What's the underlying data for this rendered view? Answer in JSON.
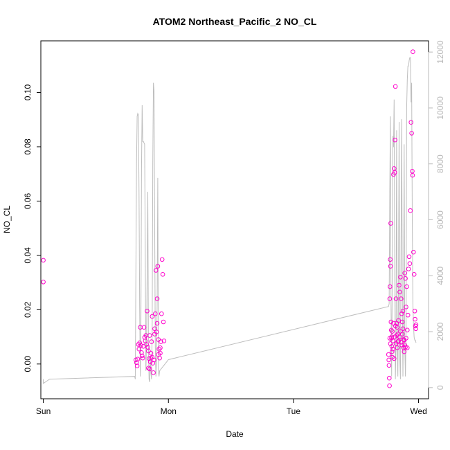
{
  "chart_data": {
    "type": "scatter",
    "title": "ATOM2 Northeast_Pacific_2 NO_CL",
    "xlabel": "Date",
    "ylabel": "NO_CL",
    "x_range_days": [
      -0.02,
      3.08
    ],
    "x_ticks": [
      {
        "label": "Sun",
        "day": 0
      },
      {
        "label": "Mon",
        "day": 1
      },
      {
        "label": "Tue",
        "day": 2
      },
      {
        "label": "Wed",
        "day": 3
      }
    ],
    "y_range": [
      -0.0128,
      0.119
    ],
    "y_ticks": [
      {
        "label": "0.00",
        "value": 0.0
      },
      {
        "label": "0.02",
        "value": 0.02
      },
      {
        "label": "0.04",
        "value": 0.04
      },
      {
        "label": "0.06",
        "value": 0.06
      },
      {
        "label": "0.08",
        "value": 0.08
      },
      {
        "label": "0.10",
        "value": 0.1
      }
    ],
    "y2_range": [
      -400,
      12400
    ],
    "y2_ticks": [
      {
        "label": "0",
        "value": 0
      },
      {
        "label": "2000",
        "value": 2000
      },
      {
        "label": "4000",
        "value": 4000
      },
      {
        "label": "6000",
        "value": 6000
      },
      {
        "label": "8000",
        "value": 8000
      },
      {
        "label": "10000",
        "value": 10000
      },
      {
        "label": "12000",
        "value": 12000
      }
    ],
    "grid": false,
    "colors": {
      "points": "#ff00cc",
      "altitude_line": "#bebebe",
      "right_axis": "#b8b8b8",
      "axis": "#000000"
    },
    "series": [
      {
        "kind": "points",
        "points": [
          [
            0.0,
            0.0382
          ],
          [
            0.0,
            0.0302
          ],
          [
            0.74,
            0.0015
          ],
          [
            0.745,
            0.0005
          ],
          [
            0.75,
            -0.0007
          ],
          [
            0.755,
            0.0018
          ],
          [
            0.76,
            0.0072
          ],
          [
            0.765,
            0.0055
          ],
          [
            0.77,
            0.0078
          ],
          [
            0.775,
            0.0135
          ],
          [
            0.78,
            0.0068
          ],
          [
            0.785,
            0.0042
          ],
          [
            0.79,
            0.003
          ],
          [
            0.795,
            0.0022
          ],
          [
            0.8,
            0.0065
          ],
          [
            0.805,
            0.0135
          ],
          [
            0.81,
            0.0098
          ],
          [
            0.815,
            0.0085
          ],
          [
            0.82,
            0.0105
          ],
          [
            0.825,
            0.0072
          ],
          [
            0.83,
            0.0195
          ],
          [
            0.835,
            0.0062
          ],
          [
            0.84,
            0.0048
          ],
          [
            0.845,
            0.002
          ],
          [
            0.85,
            -0.0018
          ],
          [
            0.855,
            0.0008
          ],
          [
            0.86,
            0.004
          ],
          [
            0.865,
            0.0082
          ],
          [
            0.87,
            0.0025
          ],
          [
            0.875,
            0.0003
          ],
          [
            0.88,
            -0.0032
          ],
          [
            0.885,
            0.0015
          ],
          [
            0.89,
            0.013
          ],
          [
            0.895,
            0.0185
          ],
          [
            0.9,
            0.0345
          ],
          [
            0.905,
            0.0118
          ],
          [
            0.91,
            0.024
          ],
          [
            0.915,
            0.036
          ],
          [
            0.92,
            0.009
          ],
          [
            0.925,
            0.0055
          ],
          [
            0.93,
            0.0022
          ],
          [
            0.935,
            0.006
          ],
          [
            0.94,
            0.0082
          ],
          [
            0.945,
            0.0185
          ],
          [
            0.95,
            0.0385
          ],
          [
            0.955,
            0.033
          ],
          [
            0.96,
            0.0155
          ],
          [
            0.965,
            0.0085
          ],
          [
            0.85,
            0.0105
          ],
          [
            0.87,
            0.0175
          ],
          [
            0.89,
            0.011
          ],
          [
            0.91,
            0.015
          ],
          [
            0.92,
            0.0035
          ],
          [
            0.935,
            0.004
          ],
          [
            0.86,
            0.0022
          ],
          [
            0.84,
            -0.0015
          ],
          [
            2.76,
            0.0035
          ],
          [
            2.762,
            0.0015
          ],
          [
            2.764,
            -0.0005
          ],
          [
            2.766,
            -0.0052
          ],
          [
            2.768,
            -0.008
          ],
          [
            2.77,
            0.024
          ],
          [
            2.772,
            0.0285
          ],
          [
            2.774,
            0.0385
          ],
          [
            2.776,
            0.036
          ],
          [
            2.778,
            0.0518
          ],
          [
            2.78,
            0.0155
          ],
          [
            2.782,
            0.0125
          ],
          [
            2.784,
            0.0095
          ],
          [
            2.786,
            0.0065
          ],
          [
            2.788,
            0.0045
          ],
          [
            2.79,
            0.0025
          ],
          [
            2.795,
            0.0085
          ],
          [
            2.8,
            0.0698
          ],
          [
            2.805,
            0.072
          ],
          [
            2.81,
            0.0705
          ],
          [
            2.812,
            0.0825
          ],
          [
            2.815,
            0.1022
          ],
          [
            2.82,
            0.024
          ],
          [
            2.825,
            0.015
          ],
          [
            2.83,
            0.0135
          ],
          [
            2.835,
            0.011
          ],
          [
            2.84,
            0.0085
          ],
          [
            2.845,
            0.029
          ],
          [
            2.85,
            0.0265
          ],
          [
            2.855,
            0.032
          ],
          [
            2.86,
            0.024
          ],
          [
            2.865,
            0.0185
          ],
          [
            2.87,
            0.0155
          ],
          [
            2.875,
            0.013
          ],
          [
            2.88,
            0.006
          ],
          [
            2.885,
            0.0045
          ],
          [
            2.89,
            0.0335
          ],
          [
            2.895,
            0.0315
          ],
          [
            2.9,
            0.021
          ],
          [
            2.905,
            0.0285
          ],
          [
            2.91,
            0.0125
          ],
          [
            2.915,
            0.018
          ],
          [
            2.92,
            0.035
          ],
          [
            2.925,
            0.0395
          ],
          [
            2.93,
            0.037
          ],
          [
            2.935,
            0.0565
          ],
          [
            2.94,
            0.089
          ],
          [
            2.945,
            0.085
          ],
          [
            2.95,
            0.071
          ],
          [
            2.952,
            0.0695
          ],
          [
            2.955,
            0.115
          ],
          [
            2.96,
            0.0412
          ],
          [
            2.965,
            0.033
          ],
          [
            2.97,
            0.0195
          ],
          [
            2.972,
            0.0165
          ],
          [
            2.975,
            0.014
          ],
          [
            2.978,
            0.013
          ],
          [
            2.98,
            0.0145
          ],
          [
            2.79,
            0.012
          ],
          [
            2.8,
            0.015
          ],
          [
            2.81,
            0.01
          ],
          [
            2.82,
            0.0075
          ],
          [
            2.83,
            0.006
          ],
          [
            2.84,
            0.016
          ],
          [
            2.85,
            0.01
          ],
          [
            2.86,
            0.008
          ],
          [
            2.87,
            0.011
          ],
          [
            2.88,
            0.009
          ],
          [
            2.89,
            0.007
          ],
          [
            2.9,
            0.0095
          ],
          [
            2.91,
            0.006
          ],
          [
            2.77,
            0.0095
          ],
          [
            2.775,
            0.0075
          ],
          [
            2.785,
            0.01
          ],
          [
            2.795,
            0.0055
          ],
          [
            2.805,
            0.002
          ],
          [
            2.815,
            0.014
          ],
          [
            2.825,
            0.0105
          ],
          [
            2.835,
            0.0082
          ],
          [
            2.855,
            0.012
          ],
          [
            2.865,
            0.007
          ],
          [
            2.875,
            0.0195
          ],
          [
            2.885,
            0.0088
          ],
          [
            2.895,
            0.0062
          ]
        ]
      },
      {
        "kind": "altitude_line",
        "axis": "right",
        "points": [
          [
            0.0,
            300
          ],
          [
            0.0,
            150
          ],
          [
            0.05,
            300
          ],
          [
            0.73,
            400
          ],
          [
            0.735,
            300
          ],
          [
            0.745,
            8000
          ],
          [
            0.75,
            9700
          ],
          [
            0.755,
            9800
          ],
          [
            0.76,
            9750
          ],
          [
            0.765,
            7000
          ],
          [
            0.77,
            3000
          ],
          [
            0.775,
            400
          ],
          [
            0.78,
            2000
          ],
          [
            0.785,
            7800
          ],
          [
            0.79,
            10100
          ],
          [
            0.795,
            8800
          ],
          [
            0.8,
            8800
          ],
          [
            0.81,
            8700
          ],
          [
            0.815,
            5000
          ],
          [
            0.82,
            600
          ],
          [
            0.825,
            1500
          ],
          [
            0.83,
            4000
          ],
          [
            0.835,
            7000
          ],
          [
            0.84,
            1500
          ],
          [
            0.845,
            300
          ],
          [
            0.85,
            200
          ],
          [
            0.855,
            1000
          ],
          [
            0.86,
            500
          ],
          [
            0.865,
            300
          ],
          [
            0.87,
            2000
          ],
          [
            0.875,
            8000
          ],
          [
            0.88,
            10900
          ],
          [
            0.885,
            10600
          ],
          [
            0.89,
            6000
          ],
          [
            0.895,
            1500
          ],
          [
            0.9,
            400
          ],
          [
            0.905,
            1000
          ],
          [
            0.91,
            3000
          ],
          [
            0.915,
            7500
          ],
          [
            0.92,
            600
          ],
          [
            0.925,
            400
          ],
          [
            0.93,
            600
          ],
          [
            1.0,
            1000
          ],
          [
            2.76,
            2900
          ],
          [
            2.765,
            3000
          ],
          [
            2.77,
            7000
          ],
          [
            2.775,
            9700
          ],
          [
            2.78,
            3000
          ],
          [
            2.785,
            400
          ],
          [
            2.79,
            4000
          ],
          [
            2.795,
            9000
          ],
          [
            2.8,
            8600
          ],
          [
            2.805,
            10300
          ],
          [
            2.81,
            4000
          ],
          [
            2.815,
            300
          ],
          [
            2.82,
            1500
          ],
          [
            2.825,
            9200
          ],
          [
            2.83,
            1500
          ],
          [
            2.835,
            400
          ],
          [
            2.84,
            3500
          ],
          [
            2.845,
            9500
          ],
          [
            2.85,
            1000
          ],
          [
            2.855,
            300
          ],
          [
            2.86,
            5000
          ],
          [
            2.865,
            9600
          ],
          [
            2.87,
            3500
          ],
          [
            2.875,
            400
          ],
          [
            2.88,
            3000
          ],
          [
            2.885,
            8700
          ],
          [
            2.89,
            1500
          ],
          [
            2.895,
            400
          ],
          [
            2.9,
            2000
          ],
          [
            2.905,
            10000
          ],
          [
            2.91,
            11000
          ],
          [
            2.915,
            11500
          ],
          [
            2.92,
            11500
          ],
          [
            2.925,
            11700
          ],
          [
            2.93,
            11800
          ],
          [
            2.935,
            11800
          ],
          [
            2.94,
            10200
          ],
          [
            2.945,
            10900
          ],
          [
            2.95,
            6000
          ],
          [
            2.955,
            3000
          ],
          [
            2.96,
            2200
          ],
          [
            2.965,
            1800
          ],
          [
            2.97,
            1700
          ],
          [
            2.975,
            1700
          ],
          [
            2.98,
            1600
          ]
        ]
      }
    ]
  }
}
